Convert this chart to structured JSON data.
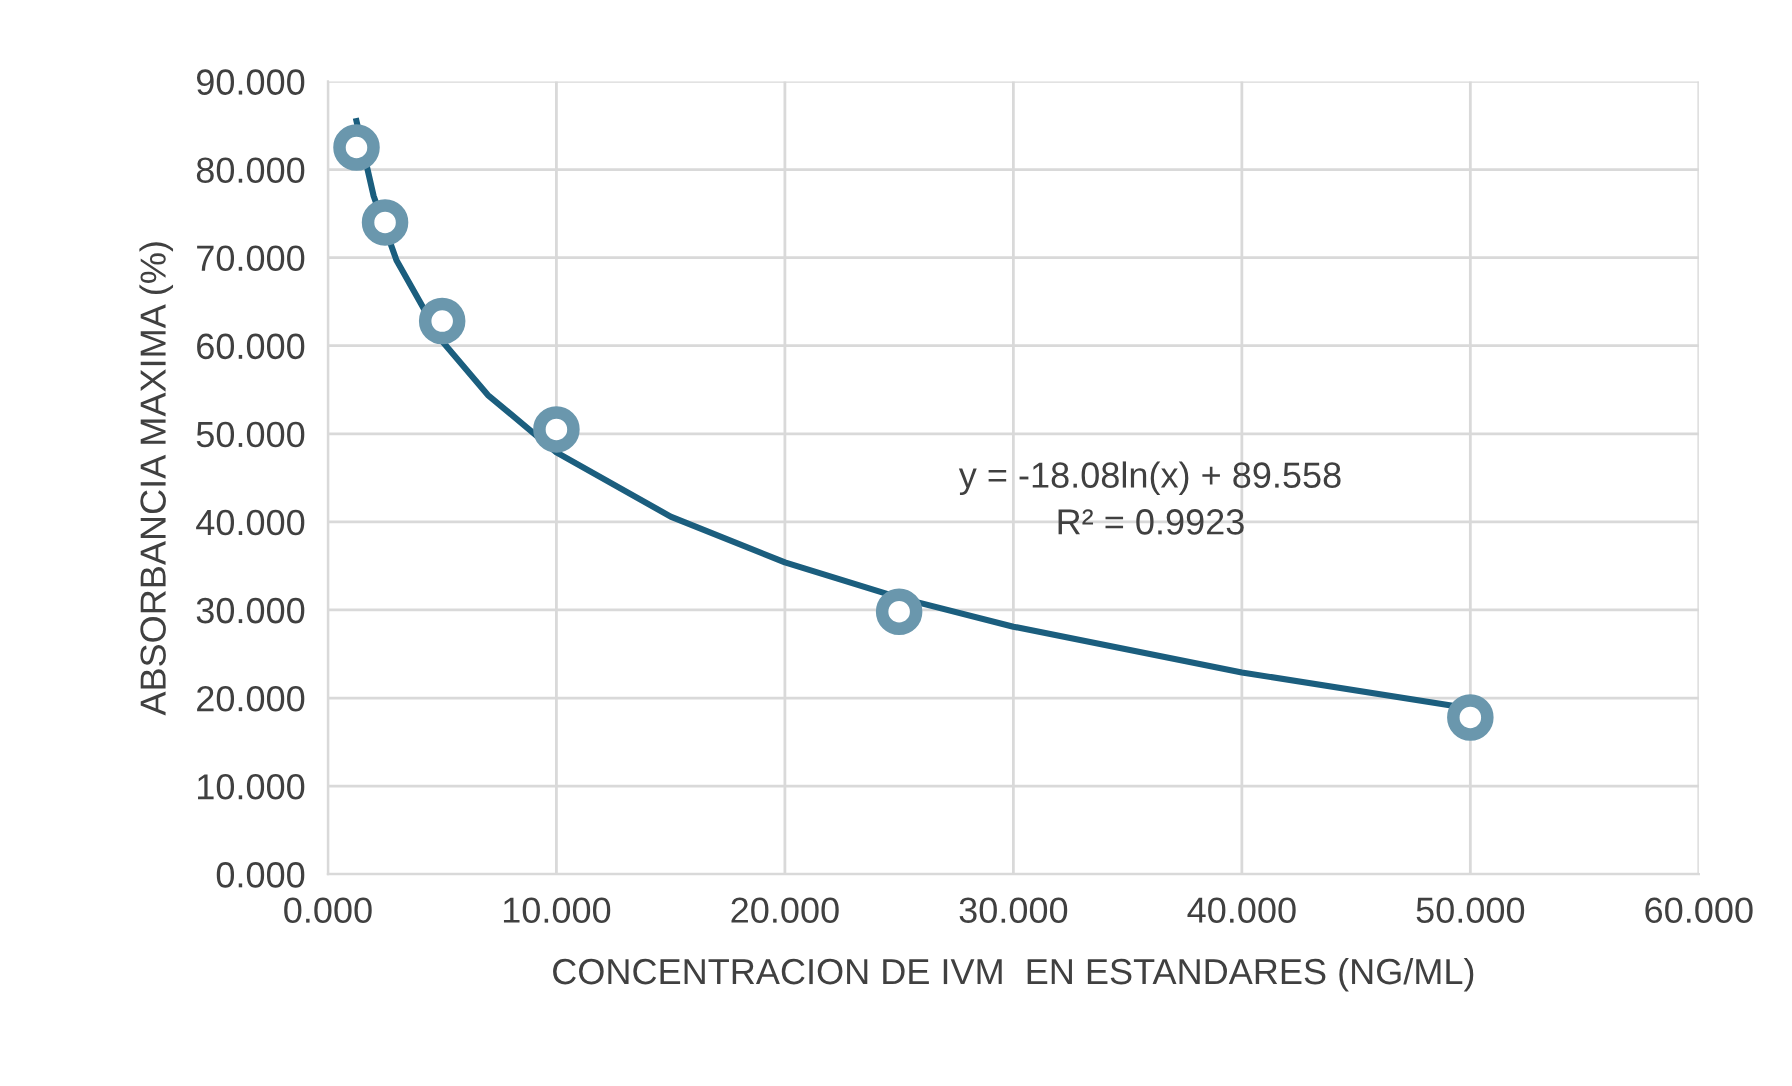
{
  "chart_data": {
    "type": "scatter",
    "xlabel": "CONCENTRACION DE IVM  EN ESTANDARES (NG/ML)",
    "ylabel": "ABSORBANCIA MAXIMA (%)",
    "series": [
      {
        "color": "#6a97ad",
        "marker": "circle",
        "x": [
          1.25,
          2.5,
          5,
          10,
          25,
          50
        ],
        "values": [
          82.5,
          74.0,
          62.8,
          50.5,
          29.8,
          17.8
        ]
      },
      {
        "type": "line",
        "marker": "none",
        "color": "#1b5e7e",
        "x": [
          1.25,
          2,
          3,
          5,
          7,
          10,
          15,
          20,
          25,
          30,
          40,
          50
        ],
        "values": [
          85.5,
          77.0,
          69.7,
          60.5,
          54.4,
          47.9,
          40.6,
          35.4,
          31.4,
          28.1,
          22.9,
          18.8
        ]
      }
    ],
    "annotations": [
      "y = -18.08ln(x) + 89.558\nR² = 0.9923"
    ],
    "xlim": [
      0,
      60
    ],
    "ylim": [
      0,
      90
    ],
    "xticks": [
      {
        "value": 0,
        "label": "0.000"
      },
      {
        "value": 10,
        "label": "10.000"
      },
      {
        "value": 20,
        "label": "20.000"
      },
      {
        "value": 30,
        "label": "30.000"
      },
      {
        "value": 40,
        "label": "40.000"
      },
      {
        "value": 50,
        "label": "50.000"
      },
      {
        "value": 60,
        "label": "60.000"
      }
    ],
    "yticks": [
      {
        "value": 0,
        "label": "0.000"
      },
      {
        "value": 10,
        "label": "10.000"
      },
      {
        "value": 20,
        "label": "20.000"
      },
      {
        "value": 30,
        "label": "30.000"
      },
      {
        "value": 40,
        "label": "40.000"
      },
      {
        "value": 50,
        "label": "50.000"
      },
      {
        "value": 60,
        "label": "60.000"
      },
      {
        "value": 70,
        "label": "70.000"
      },
      {
        "value": 80,
        "label": "80.000"
      },
      {
        "value": 90,
        "label": "90.000"
      }
    ],
    "grid": true
  }
}
